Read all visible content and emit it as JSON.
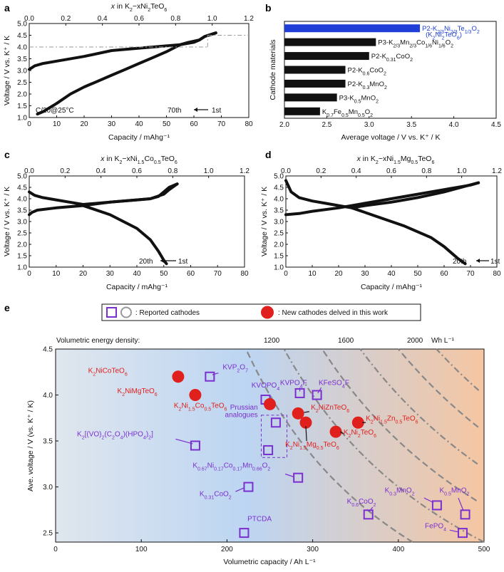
{
  "chart_data": [
    {
      "panel": "a",
      "type": "line",
      "top_axis_label": "x in K2–xNi2TeO6",
      "top_ticks": [
        "0.0",
        "0.2",
        "0.4",
        "0.6",
        "0.8",
        "1.0",
        "1.2"
      ],
      "top_range": [
        0,
        1.2
      ],
      "xlabel": "Capacity / mAhg⁻¹",
      "xlim": [
        0,
        80
      ],
      "xticks": [
        "0",
        "10",
        "20",
        "30",
        "40",
        "50",
        "60",
        "70",
        "80"
      ],
      "ylabel": "Voltage / V vs. K⁺ / K",
      "ylim": [
        1.0,
        5.0
      ],
      "yticks": [
        "1.0",
        "1.5",
        "2.0",
        "2.5",
        "3.0",
        "3.5",
        "4.0",
        "4.5",
        "5.0"
      ],
      "condition": "C/20@25°C",
      "cycle_first": "1st",
      "cycle_last": "70th",
      "guide": {
        "voltage_upper": 4.5,
        "voltage_lower": 4.0,
        "capacity": 65
      },
      "charge": [
        [
          0,
          3.05
        ],
        [
          2,
          3.2
        ],
        [
          5,
          3.3
        ],
        [
          10,
          3.4
        ],
        [
          20,
          3.6
        ],
        [
          30,
          3.85
        ],
        [
          40,
          3.95
        ],
        [
          50,
          4.05
        ],
        [
          55,
          4.1
        ],
        [
          60,
          4.2
        ],
        [
          62,
          4.3
        ],
        [
          64,
          4.45
        ],
        [
          68,
          4.6
        ]
      ],
      "discharge": [
        [
          68,
          4.6
        ],
        [
          64,
          4.45
        ],
        [
          62,
          4.3
        ],
        [
          60,
          4.25
        ],
        [
          58,
          4.2
        ],
        [
          55,
          4.1
        ],
        [
          50,
          3.8
        ],
        [
          45,
          3.55
        ],
        [
          40,
          3.3
        ],
        [
          35,
          3.05
        ],
        [
          30,
          2.8
        ],
        [
          25,
          2.55
        ],
        [
          20,
          2.3
        ],
        [
          15,
          2.0
        ],
        [
          10,
          1.6
        ],
        [
          5,
          1.25
        ],
        [
          3,
          1.15
        ]
      ]
    },
    {
      "panel": "b",
      "type": "bar",
      "orientation": "horizontal",
      "ylabel": "Cathode materials",
      "xlabel": "Average voltage / V vs. K⁺ / K",
      "xlim": [
        2.0,
        4.5
      ],
      "xticks": [
        "2.0",
        "2.5",
        "3.0",
        "3.5",
        "4.0",
        "4.5"
      ],
      "categories": [
        "P2-K2/3Ni2/3Te1/3O2 (K2Ni2TeO6)",
        "P3-K2/3Mn2/3Co1/6Ni1/6O2",
        "P2-K0.31CoO2",
        "P2-K0.6CoO2",
        "P2-K0.3MnO2",
        "P3-K0.5MnO2",
        "K0.7Fe0.5Mn0.5O2"
      ],
      "values": [
        3.6,
        3.08,
        3.0,
        2.72,
        2.72,
        2.62,
        2.42
      ],
      "highlight_color": "#1f3fd8",
      "default_color": "#111111"
    },
    {
      "panel": "c",
      "type": "line",
      "top_axis_label": "x in K2–xNi1.5Co0.5TeO6",
      "top_ticks": [
        "0.0",
        "0.2",
        "0.4",
        "0.6",
        "0.8",
        "1.0",
        "1.2"
      ],
      "top_range": [
        0,
        1.2
      ],
      "xlabel": "Capacity / mAhg⁻¹",
      "xlim": [
        0,
        80
      ],
      "xticks": [
        "0",
        "10",
        "20",
        "30",
        "40",
        "50",
        "60",
        "70",
        "80"
      ],
      "ylabel": "Voltage / V vs. K⁺ / K",
      "ylim": [
        1.0,
        5.0
      ],
      "yticks": [
        "1.0",
        "1.5",
        "2.0",
        "2.5",
        "3.0",
        "3.5",
        "4.0",
        "4.5",
        "5.0"
      ],
      "cycle_first": "1st",
      "cycle_last": "20th",
      "charge": [
        [
          0,
          3.3
        ],
        [
          1,
          3.4
        ],
        [
          3,
          3.5
        ],
        [
          10,
          3.6
        ],
        [
          20,
          3.7
        ],
        [
          30,
          3.85
        ],
        [
          40,
          3.95
        ],
        [
          45,
          4.0
        ],
        [
          48,
          4.1
        ],
        [
          50,
          4.3
        ],
        [
          52,
          4.5
        ],
        [
          55,
          4.65
        ]
      ],
      "discharge": [
        [
          55,
          4.65
        ],
        [
          52,
          4.4
        ],
        [
          50,
          4.2
        ],
        [
          45,
          4.0
        ],
        [
          40,
          3.95
        ],
        [
          30,
          3.85
        ],
        [
          20,
          3.75
        ],
        [
          15,
          3.85
        ],
        [
          10,
          3.95
        ],
        [
          5,
          4.05
        ],
        [
          2,
          4.15
        ],
        [
          0,
          4.3
        ]
      ],
      "tail": [
        [
          20,
          3.7
        ],
        [
          30,
          3.3
        ],
        [
          40,
          2.7
        ],
        [
          45,
          2.2
        ],
        [
          48,
          1.7
        ],
        [
          50,
          1.3
        ],
        [
          51,
          1.15
        ]
      ]
    },
    {
      "panel": "d",
      "type": "line",
      "top_axis_label": "x in K2–xNi1.5Mg0.5TeO6",
      "top_ticks": [
        "0.0",
        "0.2",
        "0.4",
        "0.6",
        "0.8",
        "1.0",
        "1.2"
      ],
      "top_range": [
        0,
        1.2
      ],
      "xlabel": "Capacity / mAhg⁻¹",
      "xlim": [
        0,
        80
      ],
      "xticks": [
        "0",
        "10",
        "20",
        "30",
        "40",
        "50",
        "60",
        "70",
        "80"
      ],
      "ylabel": "Voltage / V vs. K⁺ / K",
      "ylim": [
        1.0,
        5.0
      ],
      "yticks": [
        "1.0",
        "1.5",
        "2.0",
        "2.5",
        "3.0",
        "3.5",
        "4.0",
        "4.5",
        "5.0"
      ],
      "cycle_first": "1st",
      "cycle_last": "20th",
      "charge": [
        [
          0,
          3.3
        ],
        [
          5,
          3.35
        ],
        [
          10,
          3.45
        ],
        [
          20,
          3.6
        ],
        [
          30,
          3.8
        ],
        [
          40,
          4.0
        ],
        [
          50,
          4.2
        ],
        [
          60,
          4.4
        ],
        [
          70,
          4.6
        ],
        [
          73,
          4.7
        ]
      ],
      "discharge": [
        [
          73,
          4.7
        ],
        [
          68,
          4.55
        ],
        [
          60,
          4.3
        ],
        [
          50,
          4.05
        ],
        [
          40,
          3.85
        ],
        [
          30,
          3.7
        ],
        [
          25,
          3.6
        ],
        [
          20,
          3.7
        ],
        [
          15,
          3.8
        ],
        [
          10,
          3.9
        ],
        [
          5,
          4.05
        ],
        [
          2,
          4.3
        ],
        [
          0,
          4.8
        ]
      ],
      "tail": [
        [
          25,
          3.6
        ],
        [
          35,
          3.2
        ],
        [
          45,
          2.8
        ],
        [
          55,
          2.3
        ],
        [
          60,
          1.9
        ],
        [
          65,
          1.4
        ],
        [
          68,
          1.15
        ]
      ]
    },
    {
      "panel": "e",
      "type": "scatter",
      "legend_reported": ": Reported cathodes",
      "legend_new": ": New cathodes delved in this work",
      "top_label": "Volumetric energy density:",
      "energy_ticks": [
        "1200",
        "1600",
        "2000"
      ],
      "energy_unit": "Wh L⁻¹",
      "xlabel": "Volumetric capacity / Ah L⁻¹",
      "ylabel": "Ave. voltage / V (vs. K⁺ / K)",
      "xlim": [
        0,
        500
      ],
      "ylim": [
        2.4,
        4.5
      ],
      "xticks": [
        "0",
        "100",
        "200",
        "300",
        "400",
        "500"
      ],
      "yticks": [
        "2.5",
        "3.0",
        "3.5",
        "4.0",
        "4.5"
      ],
      "new_cathodes": [
        {
          "label": "K2NiCoTeO6",
          "x": 143,
          "y": 4.2
        },
        {
          "label": "K2NiMgTeO6",
          "x": 163,
          "y": 4.0
        },
        {
          "label": "K2Ni1.5Co0.5TeO6",
          "x": 250,
          "y": 3.9
        },
        {
          "label": "K2NiZnTeO6",
          "x": 283,
          "y": 3.8
        },
        {
          "label": "K2Ni1.5Zn0.5TeO6",
          "x": 353,
          "y": 3.7
        },
        {
          "label": "K2Ni1.5Mg0.5TeO6",
          "x": 292,
          "y": 3.7
        },
        {
          "label": "K2Ni2TeO6",
          "x": 327,
          "y": 3.6
        }
      ],
      "reported_cathodes": [
        {
          "label": "KVP2O7",
          "x": 180,
          "y": 4.2
        },
        {
          "label": "KVOPO4",
          "x": 245,
          "y": 3.95
        },
        {
          "label": "KVPO4F",
          "x": 285,
          "y": 4.02
        },
        {
          "label": "KFeSO4F",
          "x": 305,
          "y": 4.0
        },
        {
          "label": "Prussian analogues",
          "x": 257,
          "y": 3.7
        },
        {
          "label": "Prussian analogues",
          "x": 248,
          "y": 3.4
        },
        {
          "label": "K2[(VO)2(C2O4)(HPO4)2]",
          "x": 163,
          "y": 3.45
        },
        {
          "label": "K0.67Ni0.17Co0.17Mn0.66O2",
          "x": 283,
          "y": 3.1
        },
        {
          "label": "K0.31CoO2",
          "x": 225,
          "y": 3.0
        },
        {
          "label": "K0.6CoO2",
          "x": 365,
          "y": 2.7
        },
        {
          "label": "K0.3MnO2",
          "x": 445,
          "y": 2.8
        },
        {
          "label": "K0.5MnO2",
          "x": 478,
          "y": 2.7
        },
        {
          "label": "PTCDA",
          "x": 220,
          "y": 2.5
        },
        {
          "label": "FePO4",
          "x": 475,
          "y": 2.5
        }
      ],
      "colors": {
        "new": "#e0201d",
        "reported": "#7b2fd0",
        "bg_left": "#c8dcf3",
        "bg_right": "#f6c9a8"
      }
    }
  ]
}
